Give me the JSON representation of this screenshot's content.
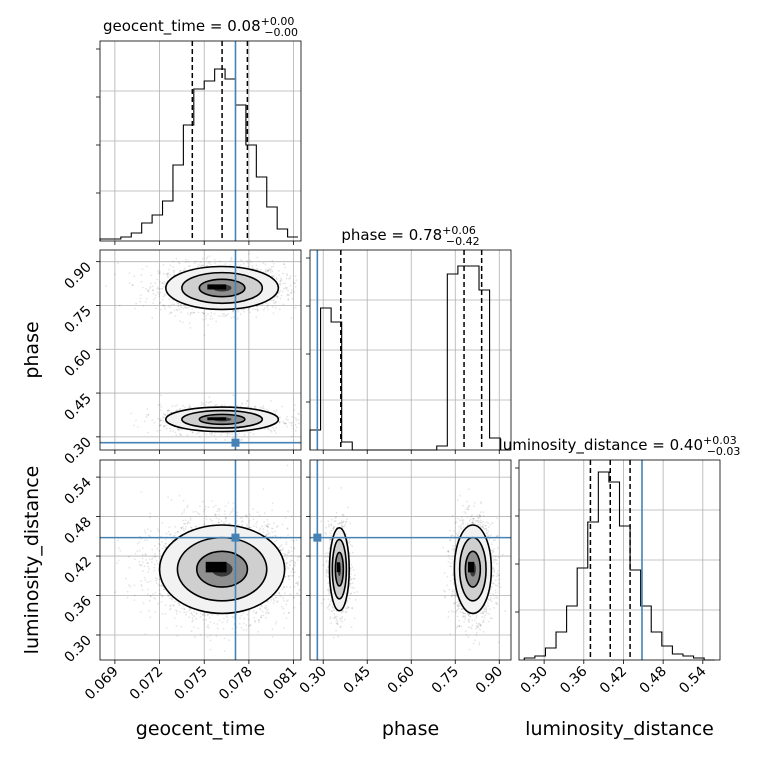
{
  "chart_data": {
    "type": "corner",
    "parameters": [
      "geocent_time",
      "phase",
      "luminosity_distance"
    ],
    "truth_color": "#4682b4",
    "axis_labels": {
      "x": [
        "geocent_time",
        "phase",
        "luminosity_distance"
      ],
      "y": [
        "phase",
        "luminosity_distance"
      ]
    },
    "panel_titles": [
      {
        "name": "geocent_time",
        "text": "geocent_time = 0.08",
        "sup": "+0.00",
        "sub": "−0.00"
      },
      {
        "name": "phase",
        "text": "phase = 0.78",
        "sup": "+0.06",
        "sub": "−0.42"
      },
      {
        "name": "luminosity_distance",
        "text": "luminosity_distance = 0.40",
        "sup": "+0.03",
        "sub": "−0.03"
      }
    ],
    "ranges": {
      "geocent_time": [
        0.068,
        0.0815
      ],
      "phase": [
        0.255,
        0.94
      ],
      "luminosity_distance": [
        0.262,
        0.566
      ]
    },
    "ticks": {
      "geocent_time": {
        "values": [
          0.069,
          0.072,
          0.075,
          0.078,
          0.081
        ],
        "labels": [
          "0.069",
          "0.072",
          "0.075",
          "0.078",
          "0.081"
        ]
      },
      "phase": {
        "values": [
          0.3,
          0.45,
          0.6,
          0.75,
          0.9
        ],
        "labels": [
          "0.30",
          "0.45",
          "0.60",
          "0.75",
          "0.90"
        ]
      },
      "luminosity_distance": {
        "values": [
          0.3,
          0.36,
          0.42,
          0.48,
          0.54
        ],
        "labels": [
          "0.30",
          "0.36",
          "0.42",
          "0.48",
          "0.54"
        ]
      }
    },
    "truths": {
      "geocent_time": 0.0771,
      "phase": 0.28,
      "luminosity_distance": 0.448
    },
    "quantiles": {
      "geocent_time": [
        0.0742,
        0.0762,
        0.0779
      ],
      "phase": [
        0.36,
        0.78,
        0.84
      ],
      "luminosity_distance": [
        0.37,
        0.4,
        0.43
      ]
    },
    "histograms": {
      "geocent_time": {
        "edges": [
          0.068,
          0.0687,
          0.0694,
          0.0701,
          0.0708,
          0.0715,
          0.0722,
          0.0729,
          0.0736,
          0.0743,
          0.075,
          0.0757,
          0.0764,
          0.0771,
          0.0778,
          0.0785,
          0.0792,
          0.0799,
          0.0806,
          0.0813
        ],
        "counts": [
          0.01,
          0.01,
          0.02,
          0.04,
          0.09,
          0.13,
          0.2,
          0.38,
          0.58,
          0.76,
          0.8,
          0.86,
          0.81,
          0.68,
          0.48,
          0.32,
          0.17,
          0.06,
          0.02
        ]
      },
      "phase": {
        "edges": [
          0.255,
          0.291,
          0.327,
          0.363,
          0.399,
          0.435,
          0.471,
          0.507,
          0.543,
          0.579,
          0.615,
          0.651,
          0.687,
          0.723,
          0.759,
          0.795,
          0.831,
          0.867,
          0.903,
          0.939
        ],
        "counts": [
          0.1,
          0.71,
          0.64,
          0.04,
          0.0,
          0.0,
          0.0,
          0.0,
          0.0,
          0.0,
          0.0,
          0.0,
          0.02,
          0.88,
          0.92,
          0.92,
          0.8,
          0.06,
          0.0
        ]
      },
      "luminosity_distance": {
        "edges": [
          0.27,
          0.286,
          0.302,
          0.318,
          0.334,
          0.35,
          0.366,
          0.382,
          0.398,
          0.414,
          0.43,
          0.446,
          0.462,
          0.478,
          0.494,
          0.51,
          0.526,
          0.542,
          0.558
        ],
        "counts": [
          0.01,
          0.02,
          0.06,
          0.14,
          0.27,
          0.46,
          0.69,
          0.94,
          0.89,
          0.67,
          0.45,
          0.27,
          0.14,
          0.07,
          0.03,
          0.02,
          0.01,
          0.0
        ]
      }
    },
    "distributions_2d": {
      "phase_vs_geocent_time": [
        {
          "center": [
            0.0762,
            0.81
          ],
          "sigma": [
            0.0018,
            0.035
          ],
          "levels": [
            1,
            2,
            3
          ],
          "weight": 0.62
        },
        {
          "center": [
            0.0762,
            0.36
          ],
          "sigma": [
            0.0018,
            0.02
          ],
          "levels": [
            1,
            2,
            3
          ],
          "weight": 0.38
        }
      ],
      "luminosity_distance_vs_geocent_time": [
        {
          "center": [
            0.0762,
            0.4
          ],
          "sigma": [
            0.002,
            0.032
          ],
          "levels": [
            1,
            2,
            3
          ],
          "weight": 1.0
        }
      ],
      "luminosity_distance_vs_phase": [
        {
          "center": [
            0.355,
            0.4
          ],
          "sigma": [
            0.016,
            0.03
          ],
          "levels": [
            1,
            2,
            3
          ],
          "weight": 0.38
        },
        {
          "center": [
            0.81,
            0.4
          ],
          "sigma": [
            0.03,
            0.032
          ],
          "levels": [
            1,
            2,
            3
          ],
          "weight": 0.62
        }
      ]
    }
  }
}
